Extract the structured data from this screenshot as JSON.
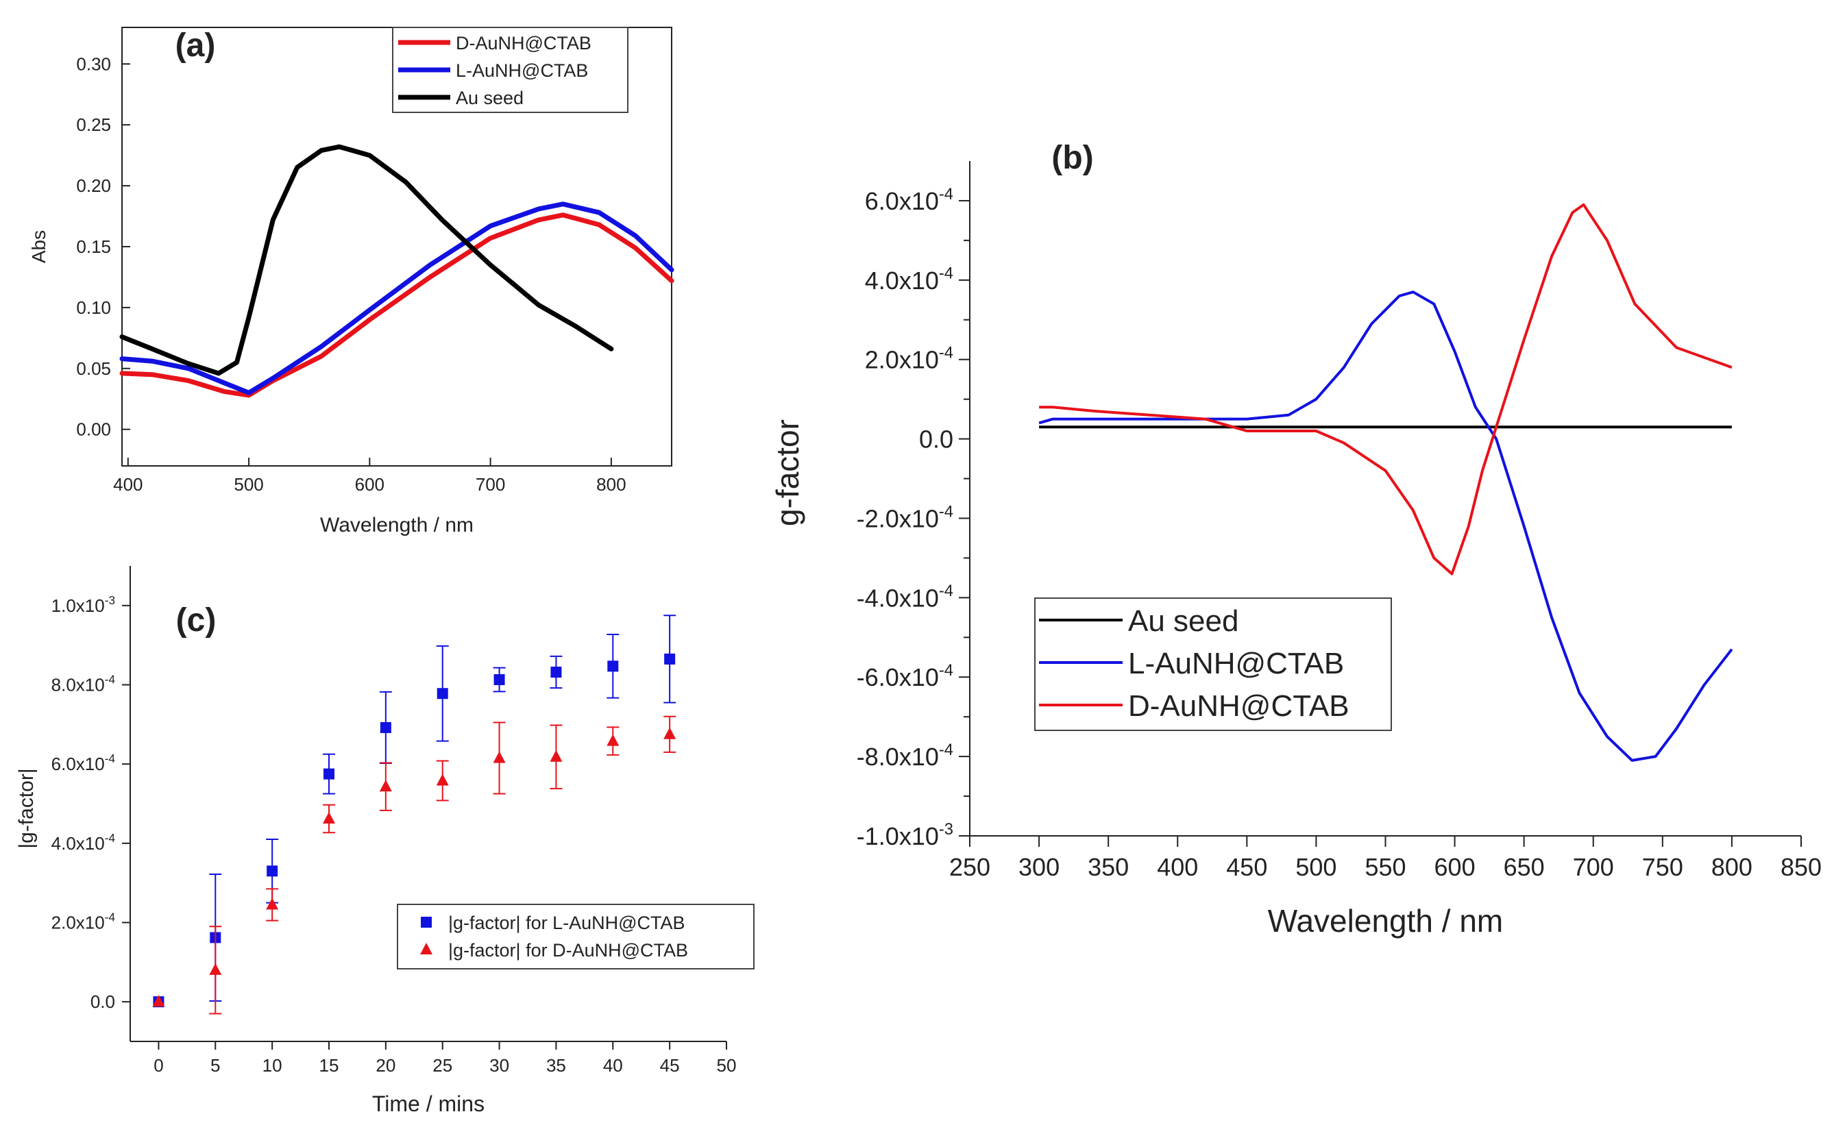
{
  "colors": {
    "red": "#e8131a",
    "blue": "#1111e0",
    "black": "#000000",
    "axis": "#222222",
    "legend_border": "#444444"
  },
  "chart_data": [
    {
      "id": "a",
      "panel_label": "(a)",
      "type": "line",
      "xlabel": "Wavelength / nm",
      "ylabel": "Abs",
      "xlim": [
        395,
        850
      ],
      "ylim": [
        -0.03,
        0.33
      ],
      "x_ticks": [
        400,
        500,
        600,
        700,
        800
      ],
      "x_tick_labels": [
        "400",
        "500",
        "600",
        "700",
        "800"
      ],
      "y_ticks": [
        0.0,
        0.05,
        0.1,
        0.15,
        0.2,
        0.25,
        0.3
      ],
      "y_tick_labels": [
        "0.00",
        "0.05",
        "0.10",
        "0.15",
        "0.20",
        "0.25",
        "0.30"
      ],
      "legend_position": "top-center",
      "legend": [
        {
          "name": "D-AuNH@CTAB",
          "color": "#e8131a"
        },
        {
          "name": "L-AuNH@CTAB",
          "color": "#1111e0"
        },
        {
          "name": "Au seed",
          "color": "#000000"
        }
      ],
      "series": [
        {
          "name": "D-AuNH@CTAB",
          "color": "#e8131a",
          "x": [
            395,
            420,
            450,
            480,
            500,
            520,
            560,
            600,
            650,
            700,
            740,
            760,
            790,
            820,
            850
          ],
          "y": [
            0.046,
            0.045,
            0.04,
            0.031,
            0.028,
            0.04,
            0.06,
            0.09,
            0.125,
            0.157,
            0.172,
            0.176,
            0.168,
            0.149,
            0.122
          ]
        },
        {
          "name": "L-AuNH@CTAB",
          "color": "#1111e0",
          "x": [
            395,
            420,
            450,
            480,
            500,
            520,
            560,
            600,
            650,
            700,
            740,
            760,
            790,
            820,
            850
          ],
          "y": [
            0.058,
            0.056,
            0.05,
            0.038,
            0.03,
            0.042,
            0.068,
            0.098,
            0.135,
            0.167,
            0.181,
            0.185,
            0.178,
            0.159,
            0.131
          ]
        },
        {
          "name": "Au seed",
          "color": "#000000",
          "x": [
            395,
            420,
            450,
            475,
            490,
            500,
            520,
            540,
            560,
            575,
            600,
            630,
            660,
            700,
            740,
            770,
            800
          ],
          "y": [
            0.076,
            0.066,
            0.054,
            0.046,
            0.055,
            0.092,
            0.172,
            0.215,
            0.229,
            0.232,
            0.225,
            0.203,
            0.172,
            0.135,
            0.102,
            0.085,
            0.066
          ]
        }
      ]
    },
    {
      "id": "b",
      "panel_label": "(b)",
      "type": "line",
      "xlabel": "Wavelength / nm",
      "ylabel": "g-factor",
      "xlim": [
        250,
        850
      ],
      "ylim": [
        -0.001,
        0.0007
      ],
      "x_ticks": [
        250,
        300,
        350,
        400,
        450,
        500,
        550,
        600,
        650,
        700,
        750,
        800,
        850
      ],
      "x_tick_labels": [
        "250",
        "300",
        "350",
        "400",
        "450",
        "500",
        "550",
        "600",
        "650",
        "700",
        "750",
        "800",
        "850"
      ],
      "y_ticks": [
        0.0006,
        0.0004,
        0.0002,
        0.0,
        -0.0002,
        -0.0004,
        -0.0006,
        -0.0008,
        -0.001
      ],
      "y_tick_labels": [
        {
          "mantissa": "6.0x10",
          "exp": "-4"
        },
        {
          "mantissa": "4.0x10",
          "exp": "-4"
        },
        {
          "mantissa": "2.0x10",
          "exp": "-4"
        },
        {
          "mantissa": "0.0",
          "exp": ""
        },
        {
          "mantissa": "-2.0x10",
          "exp": "-4"
        },
        {
          "mantissa": "-4.0x10",
          "exp": "-4"
        },
        {
          "mantissa": "-6.0x10",
          "exp": "-4"
        },
        {
          "mantissa": "-8.0x10",
          "exp": "-4"
        },
        {
          "mantissa": "-1.0x10",
          "exp": "-3"
        }
      ],
      "legend_position": "bottom-left",
      "legend": [
        {
          "name": "Au seed",
          "color": "#000000"
        },
        {
          "name": "L-AuNH@CTAB",
          "color": "#1111e0"
        },
        {
          "name": "D-AuNH@CTAB",
          "color": "#e8131a"
        }
      ],
      "series": [
        {
          "name": "Au seed",
          "color": "#000000",
          "x": [
            300,
            400,
            500,
            600,
            700,
            800
          ],
          "y": [
            3e-05,
            3e-05,
            3e-05,
            3e-05,
            3e-05,
            3e-05
          ]
        },
        {
          "name": "L-AuNH@CTAB",
          "color": "#1111e0",
          "x": [
            300,
            310,
            350,
            400,
            450,
            480,
            500,
            520,
            540,
            560,
            570,
            585,
            600,
            615,
            630,
            650,
            670,
            690,
            710,
            728,
            745,
            760,
            780,
            800
          ],
          "y": [
            4e-05,
            5e-05,
            5e-05,
            5e-05,
            5e-05,
            6e-05,
            0.0001,
            0.00018,
            0.00029,
            0.00036,
            0.00037,
            0.00034,
            0.00022,
            8e-05,
            0.0,
            -0.00022,
            -0.00045,
            -0.00064,
            -0.00075,
            -0.00081,
            -0.0008,
            -0.00073,
            -0.00062,
            -0.00053
          ]
        },
        {
          "name": "D-AuNH@CTAB",
          "color": "#e8131a",
          "x": [
            300,
            310,
            340,
            380,
            420,
            450,
            480,
            500,
            520,
            550,
            570,
            585,
            598,
            610,
            620,
            630,
            650,
            670,
            685,
            693,
            710,
            730,
            760,
            800
          ],
          "y": [
            8e-05,
            8e-05,
            7e-05,
            6e-05,
            5e-05,
            2e-05,
            2e-05,
            2e-05,
            -1e-05,
            -8e-05,
            -0.00018,
            -0.0003,
            -0.00034,
            -0.00022,
            -8e-05,
            3e-05,
            0.00025,
            0.00046,
            0.00057,
            0.00059,
            0.0005,
            0.00034,
            0.00023,
            0.00018
          ]
        }
      ]
    },
    {
      "id": "c",
      "panel_label": "(c)",
      "type": "scatter",
      "xlabel": "Time / mins",
      "ylabel": "|g-factor|",
      "xlim": [
        -2.5,
        50
      ],
      "ylim": [
        -0.0001,
        0.0011
      ],
      "x_ticks": [
        0,
        5,
        10,
        15,
        20,
        25,
        30,
        35,
        40,
        45,
        50
      ],
      "x_tick_labels": [
        "0",
        "5",
        "10",
        "15",
        "20",
        "25",
        "30",
        "35",
        "40",
        "45",
        "50"
      ],
      "y_ticks": [
        0.0,
        0.0002,
        0.0004,
        0.0006,
        0.0008,
        0.001
      ],
      "y_tick_labels": [
        {
          "mantissa": "0.0",
          "exp": ""
        },
        {
          "mantissa": "2.0x10",
          "exp": "-4"
        },
        {
          "mantissa": "4.0x10",
          "exp": "-4"
        },
        {
          "mantissa": "6.0x10",
          "exp": "-4"
        },
        {
          "mantissa": "8.0x10",
          "exp": "-4"
        },
        {
          "mantissa": "1.0x10",
          "exp": "-3"
        }
      ],
      "legend_position": "bottom-right",
      "legend": [
        {
          "name": "|g-factor| for L-AuNH@CTAB",
          "color": "#1111e0",
          "marker": "square"
        },
        {
          "name": "|g-factor| for D-AuNH@CTAB",
          "color": "#e8131a",
          "marker": "triangle"
        }
      ],
      "series": [
        {
          "name": "|g-factor| for L-AuNH@CTAB",
          "color": "#1111e0",
          "marker": "square",
          "x": [
            0,
            5,
            10,
            15,
            20,
            25,
            30,
            35,
            40,
            45
          ],
          "y": [
            0.0,
            0.000162,
            0.00033,
            0.000575,
            0.000692,
            0.000778,
            0.000813,
            0.000832,
            0.000847,
            0.000865
          ],
          "err": [
            0.0,
            0.00016,
            8e-05,
            5e-05,
            9e-05,
            0.00012,
            3e-05,
            4e-05,
            8e-05,
            0.00011
          ]
        },
        {
          "name": "|g-factor| for D-AuNH@CTAB",
          "color": "#e8131a",
          "marker": "triangle",
          "x": [
            0,
            5,
            10,
            15,
            20,
            25,
            30,
            35,
            40,
            45
          ],
          "y": [
            0.0,
            8e-05,
            0.000245,
            0.000462,
            0.000543,
            0.000558,
            0.000615,
            0.000618,
            0.000658,
            0.000675
          ],
          "err": [
            0.0,
            0.00011,
            4e-05,
            3.5e-05,
            6e-05,
            5e-05,
            9e-05,
            8e-05,
            3.5e-05,
            4.5e-05
          ]
        }
      ]
    }
  ]
}
